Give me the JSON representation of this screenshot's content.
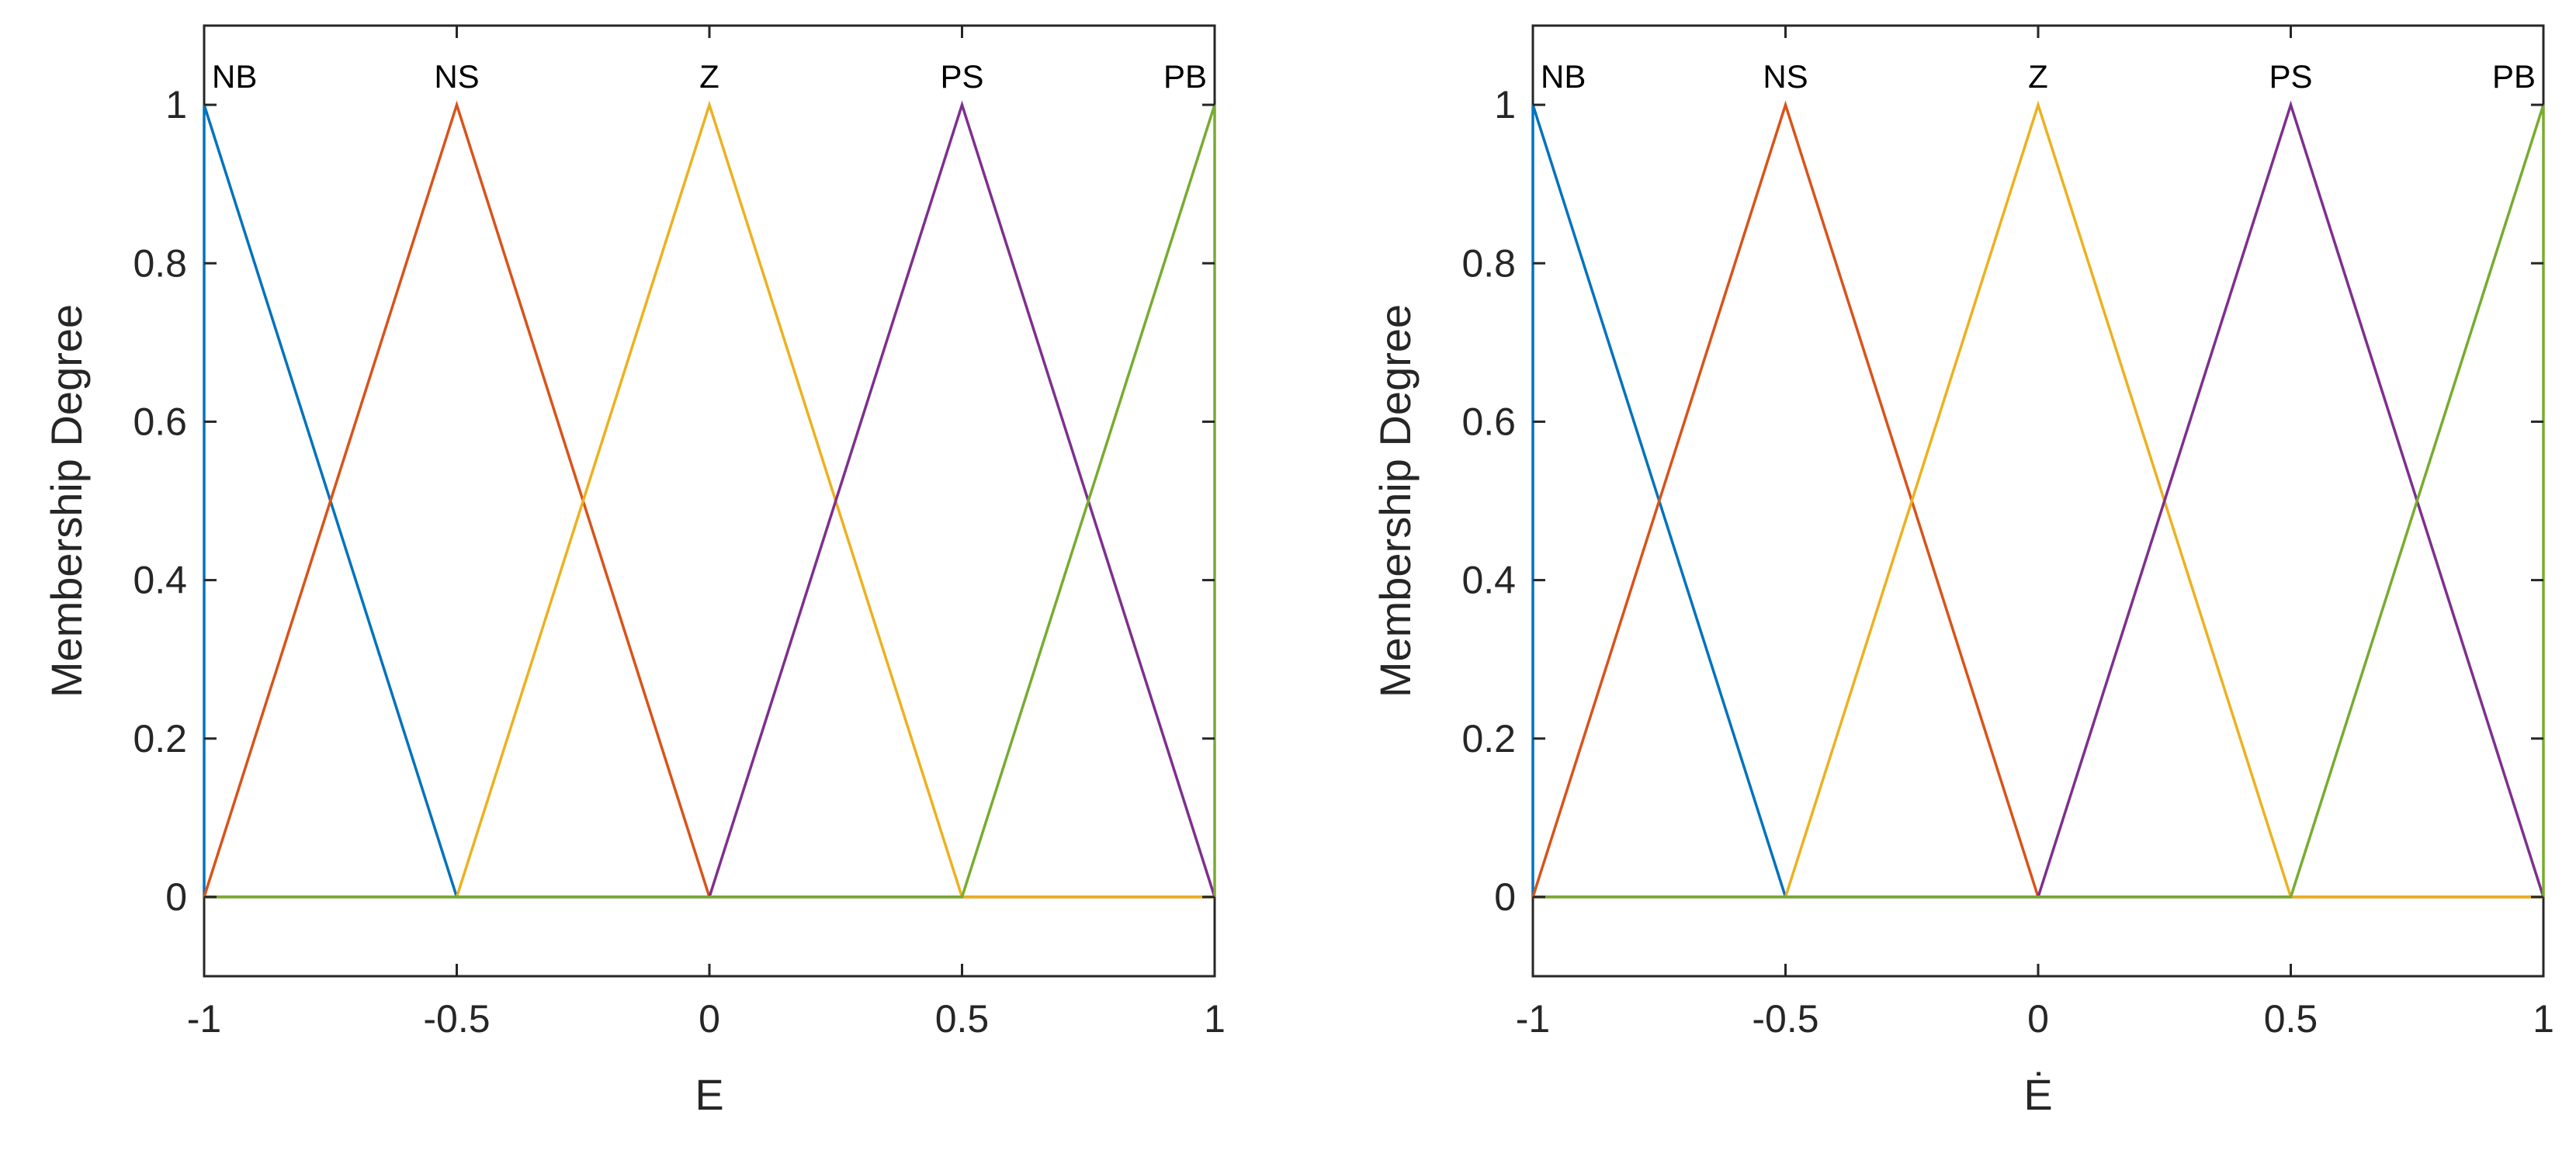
{
  "chart_data": [
    {
      "type": "line",
      "title": "",
      "xlabel": "E",
      "ylabel": "Membership Degree",
      "xlim": [
        -1,
        1
      ],
      "ylim": [
        -0.1,
        1.1
      ],
      "xticks": [
        -1,
        -0.5,
        0,
        0.5,
        1
      ],
      "xtick_labels": [
        "-1",
        "-0.5",
        "0",
        "0.5",
        "1"
      ],
      "yticks": [
        0,
        0.2,
        0.4,
        0.6,
        0.8,
        1
      ],
      "ytick_labels": [
        "0",
        "0.2",
        "0.4",
        "0.6",
        "0.8",
        "1"
      ],
      "grid": false,
      "series": [
        {
          "name": "NB",
          "color": "#0072BD",
          "x": [
            -1,
            -1,
            -0.5,
            1
          ],
          "y": [
            0,
            1,
            0,
            0
          ]
        },
        {
          "name": "NS",
          "color": "#D95319",
          "x": [
            -1,
            -0.5,
            0,
            1
          ],
          "y": [
            0,
            1,
            0,
            0
          ]
        },
        {
          "name": "Z",
          "color": "#EDB120",
          "x": [
            -1,
            -0.5,
            0,
            0.5,
            1
          ],
          "y": [
            0,
            0,
            1,
            0,
            0
          ]
        },
        {
          "name": "PS",
          "color": "#7E2F8E",
          "x": [
            -1,
            0,
            0.5,
            1
          ],
          "y": [
            0,
            0,
            1,
            0
          ]
        },
        {
          "name": "PB",
          "color": "#77AC30",
          "x": [
            -1,
            0.5,
            1,
            1
          ],
          "y": [
            0,
            0,
            1,
            0
          ]
        }
      ],
      "annotations": [
        {
          "text": "NB",
          "x": -1,
          "anchor": "start"
        },
        {
          "text": "NS",
          "x": -0.5,
          "anchor": "middle"
        },
        {
          "text": "Z",
          "x": 0,
          "anchor": "middle"
        },
        {
          "text": "PS",
          "x": 0.5,
          "anchor": "middle"
        },
        {
          "text": "PB",
          "x": 1,
          "anchor": "end"
        }
      ]
    },
    {
      "type": "line",
      "title": "",
      "xlabel": "Ė",
      "ylabel": "Membership Degree",
      "xlim": [
        -1,
        1
      ],
      "ylim": [
        -0.1,
        1.1
      ],
      "xticks": [
        -1,
        -0.5,
        0,
        0.5,
        1
      ],
      "xtick_labels": [
        "-1",
        "-0.5",
        "0",
        "0.5",
        "1"
      ],
      "yticks": [
        0,
        0.2,
        0.4,
        0.6,
        0.8,
        1
      ],
      "ytick_labels": [
        "0",
        "0.2",
        "0.4",
        "0.6",
        "0.8",
        "1"
      ],
      "grid": false,
      "series": [
        {
          "name": "NB",
          "color": "#0072BD",
          "x": [
            -1,
            -1,
            -0.5,
            1
          ],
          "y": [
            0,
            1,
            0,
            0
          ]
        },
        {
          "name": "NS",
          "color": "#D95319",
          "x": [
            -1,
            -0.5,
            0,
            1
          ],
          "y": [
            0,
            1,
            0,
            0
          ]
        },
        {
          "name": "Z",
          "color": "#EDB120",
          "x": [
            -1,
            -0.5,
            0,
            0.5,
            1
          ],
          "y": [
            0,
            0,
            1,
            0,
            0
          ]
        },
        {
          "name": "PS",
          "color": "#7E2F8E",
          "x": [
            -1,
            0,
            0.5,
            1
          ],
          "y": [
            0,
            0,
            1,
            0
          ]
        },
        {
          "name": "PB",
          "color": "#77AC30",
          "x": [
            -1,
            0.5,
            1,
            1
          ],
          "y": [
            0,
            0,
            1,
            0
          ]
        }
      ],
      "annotations": [
        {
          "text": "NB",
          "x": -1,
          "anchor": "start"
        },
        {
          "text": "NS",
          "x": -0.5,
          "anchor": "middle"
        },
        {
          "text": "Z",
          "x": 0,
          "anchor": "middle"
        },
        {
          "text": "PS",
          "x": 0.5,
          "anchor": "middle"
        },
        {
          "text": "PB",
          "x": 1,
          "anchor": "end"
        }
      ]
    }
  ]
}
